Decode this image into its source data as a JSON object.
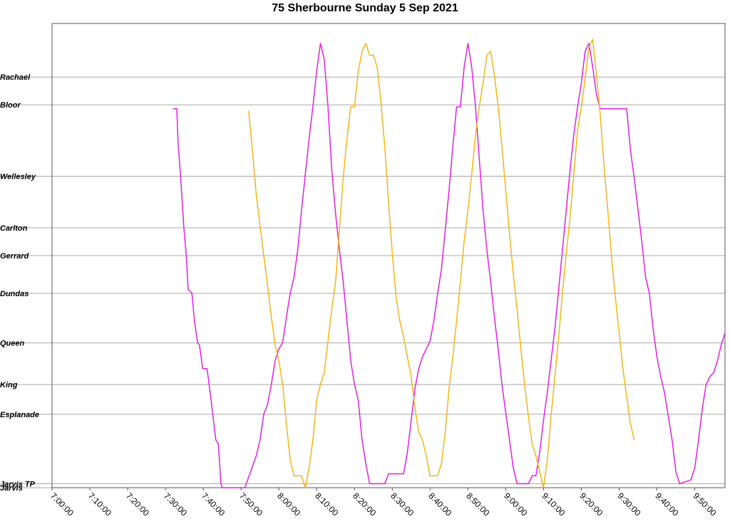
{
  "chart_data": {
    "type": "line",
    "title": "75 Sherbourne Sunday 5 Sep 2021",
    "xlabel": "",
    "ylabel": "",
    "x_unit": "time of day",
    "xlim": [
      "7:00:00",
      "9:58:00"
    ],
    "x_ticks": [
      "7:00:00",
      "7:10:00",
      "7:20:00",
      "7:30:00",
      "7:40:00",
      "7:50:00",
      "8:00:00",
      "8:10:00",
      "8:20:00",
      "8:30:00",
      "8:40:00",
      "8:50:00",
      "9:00:00",
      "9:10:00",
      "9:20:00",
      "9:30:00",
      "9:40:00",
      "9:50:00"
    ],
    "stops": [
      {
        "name": "Jarvis",
        "pos": 0
      },
      {
        "name": "Jarvis TP",
        "pos": 0.1
      },
      {
        "name": "Esplanade",
        "pos": 1.85
      },
      {
        "name": "King",
        "pos": 2.6
      },
      {
        "name": "Queen",
        "pos": 3.65
      },
      {
        "name": "Dundas",
        "pos": 4.9
      },
      {
        "name": "Gerrard",
        "pos": 5.85
      },
      {
        "name": "Carlton",
        "pos": 6.55
      },
      {
        "name": "Wellesley",
        "pos": 7.85
      },
      {
        "name": "Bloor",
        "pos": 9.65
      },
      {
        "name": "Rachael",
        "pos": 10.35
      }
    ],
    "ylim": [
      0,
      11.7
    ],
    "grid": true,
    "legend": "none",
    "series": [
      {
        "color": "#e020e0",
        "points": [
          [
            "7:32:00",
            9.55
          ],
          [
            "7:33:00",
            9.55
          ],
          [
            "7:33:20",
            8.7
          ],
          [
            "7:34:00",
            7.85
          ],
          [
            "7:34:50",
            6.6
          ],
          [
            "7:35:30",
            5.85
          ],
          [
            "7:36:00",
            5.0
          ],
          [
            "7:37:00",
            4.9
          ],
          [
            "7:37:40",
            4.2
          ],
          [
            "7:38:30",
            3.65
          ],
          [
            "7:39:00",
            3.6
          ],
          [
            "7:39:50",
            3.0
          ],
          [
            "7:41:00",
            3.0
          ],
          [
            "7:41:50",
            2.4
          ],
          [
            "7:42:30",
            1.85
          ],
          [
            "7:43:20",
            1.2
          ],
          [
            "7:44:00",
            1.1
          ],
          [
            "7:44:40",
            0.1
          ],
          [
            "7:45:00",
            0
          ],
          [
            "7:51:00",
            0
          ],
          [
            "7:54:00",
            0.8
          ],
          [
            "7:55:00",
            1.2
          ],
          [
            "7:56:00",
            1.85
          ],
          [
            "7:57:00",
            2.1
          ],
          [
            "7:58:00",
            2.6
          ],
          [
            "7:59:00",
            3.2
          ],
          [
            "8:00:00",
            3.5
          ],
          [
            "8:01:00",
            3.65
          ],
          [
            "8:02:00",
            4.3
          ],
          [
            "8:03:00",
            4.9
          ],
          [
            "8:04:00",
            5.3
          ],
          [
            "8:05:00",
            6.0
          ],
          [
            "8:06:00",
            7.0
          ],
          [
            "8:07:00",
            7.9
          ],
          [
            "8:08:00",
            8.8
          ],
          [
            "8:09:00",
            9.6
          ],
          [
            "8:10:00",
            10.5
          ],
          [
            "8:11:00",
            11.2
          ],
          [
            "8:12:00",
            10.8
          ],
          [
            "8:13:00",
            9.6
          ],
          [
            "8:14:00",
            8.0
          ],
          [
            "8:15:00",
            6.9
          ],
          [
            "8:16:00",
            6.0
          ],
          [
            "8:17:00",
            5.2
          ],
          [
            "8:18:00",
            4.2
          ],
          [
            "8:19:00",
            3.2
          ],
          [
            "8:20:00",
            2.6
          ],
          [
            "8:21:00",
            2.2
          ],
          [
            "8:22:00",
            1.2
          ],
          [
            "8:23:00",
            0.6
          ],
          [
            "8:24:00",
            0.1
          ],
          [
            "8:28:00",
            0.1
          ],
          [
            "8:29:00",
            0.35
          ],
          [
            "8:33:00",
            0.35
          ],
          [
            "8:34:00",
            0.9
          ],
          [
            "8:35:00",
            1.7
          ],
          [
            "8:36:00",
            2.5
          ],
          [
            "8:37:00",
            3.0
          ],
          [
            "8:38:00",
            3.3
          ],
          [
            "8:39:00",
            3.5
          ],
          [
            "8:40:00",
            3.7
          ],
          [
            "8:41:00",
            4.2
          ],
          [
            "8:42:00",
            4.9
          ],
          [
            "8:43:00",
            5.5
          ],
          [
            "8:44:00",
            6.5
          ],
          [
            "8:45:00",
            7.5
          ],
          [
            "8:46:00",
            8.6
          ],
          [
            "8:47:00",
            9.6
          ],
          [
            "8:48:00",
            9.6
          ],
          [
            "8:49:00",
            10.6
          ],
          [
            "8:50:00",
            11.2
          ],
          [
            "8:51:00",
            10.6
          ],
          [
            "8:52:00",
            9.6
          ],
          [
            "8:53:00",
            8.3
          ],
          [
            "8:54:00",
            7.0
          ],
          [
            "8:55:00",
            6.0
          ],
          [
            "8:56:00",
            5.2
          ],
          [
            "8:57:00",
            4.3
          ],
          [
            "8:58:00",
            3.5
          ],
          [
            "8:59:00",
            2.6
          ],
          [
            "9:00:00",
            1.9
          ],
          [
            "9:01:00",
            1.2
          ],
          [
            "9:02:00",
            0.5
          ],
          [
            "9:03:00",
            0.1
          ],
          [
            "9:06:00",
            0.1
          ],
          [
            "9:07:00",
            0.3
          ],
          [
            "9:08:00",
            0.3
          ],
          [
            "9:09:00",
            0.9
          ],
          [
            "9:10:00",
            1.7
          ],
          [
            "9:11:00",
            2.4
          ],
          [
            "9:12:00",
            3.2
          ],
          [
            "9:13:00",
            4.0
          ],
          [
            "9:14:00",
            5.0
          ],
          [
            "9:15:00",
            6.0
          ],
          [
            "9:16:00",
            7.0
          ],
          [
            "9:17:00",
            8.0
          ],
          [
            "9:18:00",
            8.9
          ],
          [
            "9:19:00",
            9.6
          ],
          [
            "9:20:00",
            10.2
          ],
          [
            "9:21:00",
            11.0
          ],
          [
            "9:22:00",
            11.2
          ],
          [
            "9:23:00",
            10.6
          ],
          [
            "9:24:00",
            9.9
          ],
          [
            "9:25:00",
            9.55
          ],
          [
            "9:32:00",
            9.55
          ],
          [
            "9:33:00",
            8.5
          ],
          [
            "9:34:00",
            7.8
          ],
          [
            "9:35:00",
            7.0
          ],
          [
            "9:36:00",
            6.2
          ],
          [
            "9:37:00",
            5.3
          ],
          [
            "9:38:00",
            4.9
          ],
          [
            "9:39:00",
            4.0
          ],
          [
            "9:40:00",
            3.3
          ],
          [
            "9:41:00",
            2.8
          ],
          [
            "9:42:00",
            2.4
          ],
          [
            "9:43:00",
            1.8
          ],
          [
            "9:44:00",
            1.2
          ],
          [
            "9:45:00",
            0.4
          ],
          [
            "9:46:00",
            0.1
          ],
          [
            "9:49:00",
            0.2
          ],
          [
            "9:50:00",
            0.5
          ],
          [
            "9:51:00",
            1.2
          ],
          [
            "9:52:00",
            2.0
          ],
          [
            "9:53:00",
            2.6
          ],
          [
            "9:54:00",
            2.8
          ],
          [
            "9:55:00",
            2.9
          ],
          [
            "9:56:00",
            3.2
          ],
          [
            "9:57:00",
            3.6
          ],
          [
            "9:58:00",
            3.9
          ]
        ]
      },
      {
        "color": "#f2b51a",
        "points": [
          [
            "7:52:00",
            9.5
          ],
          [
            "7:53:00",
            8.5
          ],
          [
            "7:54:00",
            7.4
          ],
          [
            "7:55:00",
            6.6
          ],
          [
            "7:56:00",
            5.85
          ],
          [
            "7:57:00",
            5.1
          ],
          [
            "7:58:00",
            4.3
          ],
          [
            "7:59:00",
            3.6
          ],
          [
            "8:00:00",
            3.2
          ],
          [
            "8:01:00",
            2.6
          ],
          [
            "8:02:00",
            1.6
          ],
          [
            "8:03:00",
            0.7
          ],
          [
            "8:04:00",
            0.3
          ],
          [
            "8:06:00",
            0.3
          ],
          [
            "8:07:00",
            0
          ],
          [
            "8:08:00",
            0.5
          ],
          [
            "8:09:00",
            1.2
          ],
          [
            "8:10:00",
            2.2
          ],
          [
            "8:11:00",
            2.6
          ],
          [
            "8:12:00",
            2.9
          ],
          [
            "8:13:00",
            3.7
          ],
          [
            "8:14:00",
            4.5
          ],
          [
            "8:15:00",
            5.2
          ],
          [
            "8:16:00",
            6.5
          ],
          [
            "8:17:00",
            7.8
          ],
          [
            "8:18:00",
            8.8
          ],
          [
            "8:19:00",
            9.6
          ],
          [
            "8:20:00",
            9.6
          ],
          [
            "8:21:00",
            10.5
          ],
          [
            "8:22:00",
            11.0
          ],
          [
            "8:23:00",
            11.2
          ],
          [
            "8:24:00",
            10.9
          ],
          [
            "8:25:00",
            10.9
          ],
          [
            "8:26:00",
            10.6
          ],
          [
            "8:27:00",
            9.7
          ],
          [
            "8:28:00",
            8.6
          ],
          [
            "8:29:00",
            7.2
          ],
          [
            "8:30:00",
            5.9
          ],
          [
            "8:31:00",
            4.8
          ],
          [
            "8:32:00",
            4.2
          ],
          [
            "8:33:00",
            3.8
          ],
          [
            "8:34:00",
            3.3
          ],
          [
            "8:35:00",
            2.8
          ],
          [
            "8:36:00",
            2.0
          ],
          [
            "8:37:00",
            1.4
          ],
          [
            "8:38:00",
            1.2
          ],
          [
            "8:39:00",
            0.8
          ],
          [
            "8:40:00",
            0.3
          ],
          [
            "8:42:00",
            0.3
          ],
          [
            "8:43:00",
            0.6
          ],
          [
            "8:44:00",
            1.4
          ],
          [
            "8:45:00",
            2.5
          ],
          [
            "8:46:00",
            3.3
          ],
          [
            "8:47:00",
            4.2
          ],
          [
            "8:48:00",
            5.2
          ],
          [
            "8:49:00",
            6.2
          ],
          [
            "8:50:00",
            7.0
          ],
          [
            "8:51:00",
            7.9
          ],
          [
            "8:52:00",
            8.9
          ],
          [
            "8:53:00",
            9.6
          ],
          [
            "8:54:00",
            10.2
          ],
          [
            "8:55:00",
            10.9
          ],
          [
            "8:56:00",
            11.0
          ],
          [
            "8:57:00",
            10.4
          ],
          [
            "8:58:00",
            9.6
          ],
          [
            "8:59:00",
            8.6
          ],
          [
            "9:00:00",
            7.5
          ],
          [
            "9:01:00",
            6.4
          ],
          [
            "9:02:00",
            5.4
          ],
          [
            "9:03:00",
            4.5
          ],
          [
            "9:04:00",
            3.5
          ],
          [
            "9:05:00",
            2.6
          ],
          [
            "9:06:00",
            1.8
          ],
          [
            "9:07:00",
            1.1
          ],
          [
            "9:08:00",
            0.8
          ],
          [
            "9:09:00",
            0.4
          ],
          [
            "9:10:00",
            0
          ],
          [
            "9:11:00",
            0.7
          ],
          [
            "9:12:00",
            1.8
          ],
          [
            "9:13:00",
            2.8
          ],
          [
            "9:14:00",
            3.8
          ],
          [
            "9:15:00",
            4.9
          ],
          [
            "9:16:00",
            5.9
          ],
          [
            "9:17:00",
            6.8
          ],
          [
            "9:18:00",
            7.9
          ],
          [
            "9:19:00",
            9.0
          ],
          [
            "9:20:00",
            9.6
          ],
          [
            "9:21:00",
            10.3
          ],
          [
            "9:22:00",
            11.1
          ],
          [
            "9:23:00",
            11.3
          ],
          [
            "9:24:00",
            10.4
          ],
          [
            "9:25:00",
            9.4
          ],
          [
            "9:26:00",
            8.1
          ],
          [
            "9:27:00",
            7.0
          ],
          [
            "9:28:00",
            5.8
          ],
          [
            "9:29:00",
            4.8
          ],
          [
            "9:30:00",
            3.9
          ],
          [
            "9:31:00",
            3.0
          ],
          [
            "9:32:00",
            2.3
          ],
          [
            "9:33:00",
            1.6
          ],
          [
            "9:34:00",
            1.2
          ]
        ]
      }
    ]
  }
}
